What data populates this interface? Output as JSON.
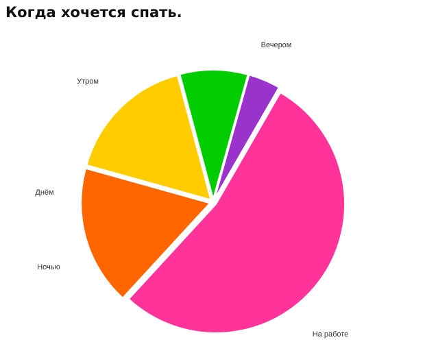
{
  "chart_data": {
    "type": "pie",
    "title": "Когда хочется спать.",
    "slices": [
      {
        "label": "На работе",
        "value": 53.5,
        "color": "#ff3399"
      },
      {
        "label": "Вечером",
        "value": 17.5,
        "color": "#ff6600"
      },
      {
        "label": "Утром",
        "value": 16.5,
        "color": "#ffcc00"
      },
      {
        "label": "Днём",
        "value": 8.5,
        "color": "#00cc00"
      },
      {
        "label": "Ночью",
        "value": 4.0,
        "color": "#9933cc"
      }
    ],
    "legend": "none",
    "grid": false
  }
}
